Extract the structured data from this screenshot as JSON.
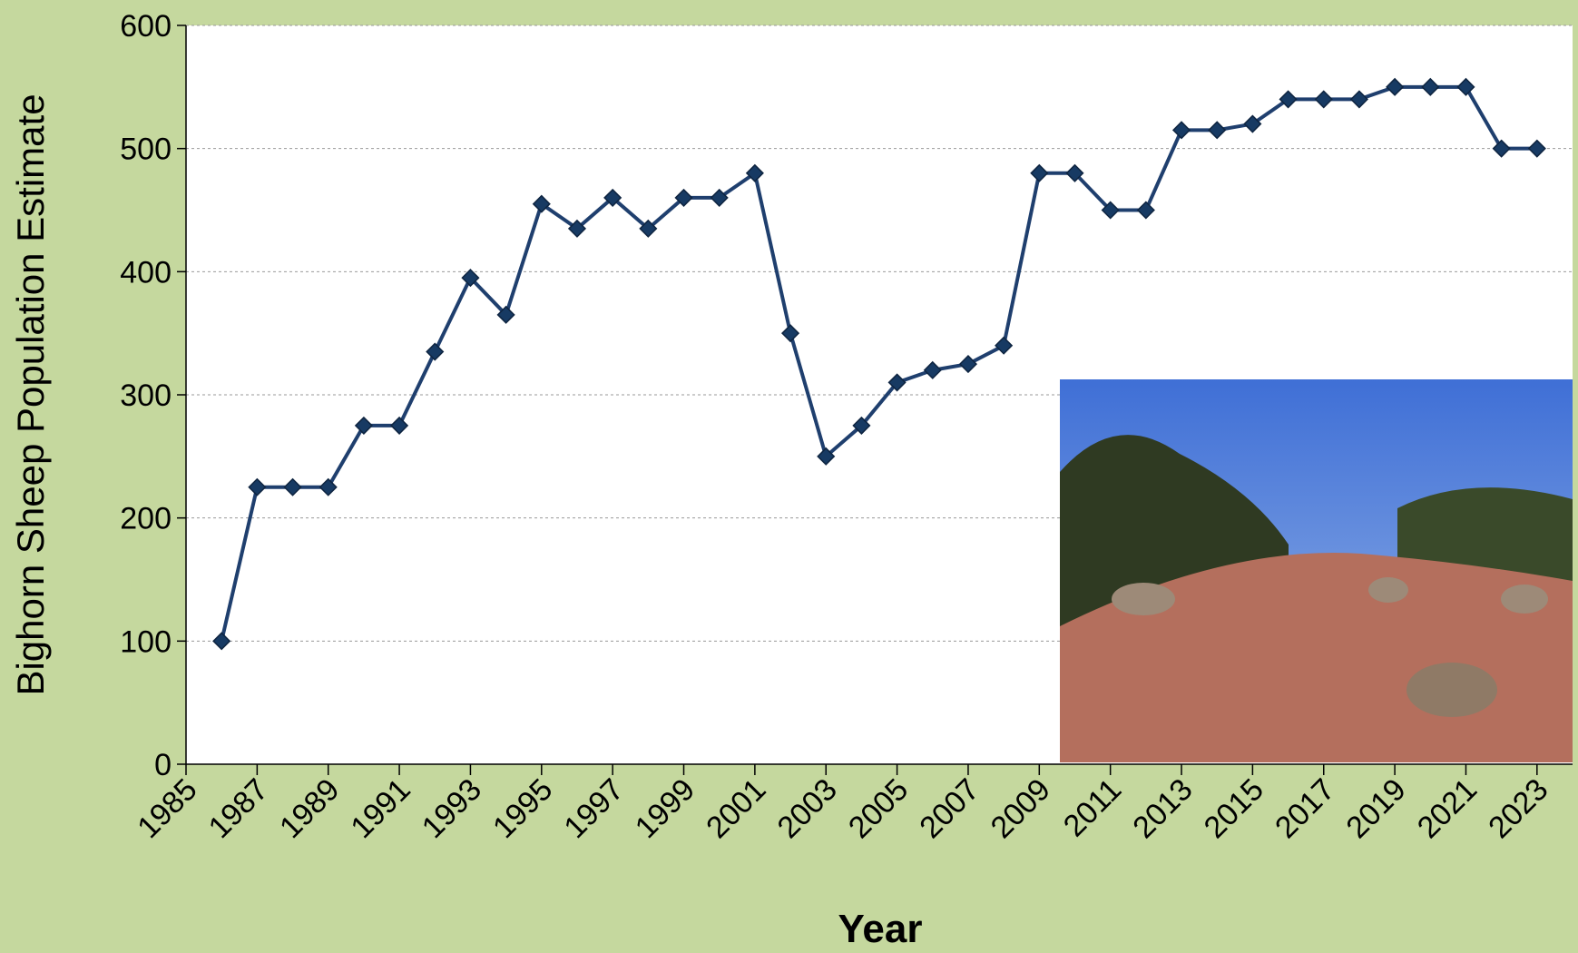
{
  "chart_data": {
    "type": "line",
    "x_label": "Year",
    "y_label": "Bighorn Sheep Population Estimate",
    "x": [
      1986,
      1987,
      1988,
      1989,
      1990,
      1991,
      1992,
      1993,
      1994,
      1995,
      1996,
      1997,
      1998,
      1999,
      2000,
      2001,
      2002,
      2003,
      2004,
      2005,
      2006,
      2007,
      2008,
      2009,
      2010,
      2011,
      2012,
      2013,
      2014,
      2015,
      2016,
      2017,
      2018,
      2019,
      2020,
      2021,
      2022,
      2023
    ],
    "series": [
      {
        "color": "#1f3f6e",
        "values": [
          100,
          225,
          225,
          225,
          275,
          275,
          335,
          395,
          365,
          455,
          435,
          460,
          435,
          460,
          460,
          480,
          350,
          250,
          275,
          310,
          320,
          325,
          340,
          480,
          480,
          450,
          450,
          515,
          515,
          520,
          540,
          540,
          540,
          550,
          550,
          550,
          500,
          500
        ]
      }
    ],
    "xlim": [
      1985,
      2024
    ],
    "xticks": [
      1985,
      1987,
      1989,
      1991,
      1993,
      1995,
      1997,
      1999,
      2001,
      2003,
      2005,
      2007,
      2009,
      2011,
      2013,
      2015,
      2017,
      2019,
      2021,
      2023
    ],
    "ylim": [
      0,
      600
    ],
    "yticks": [
      0,
      100,
      200,
      300,
      400,
      500,
      600
    ],
    "grid": true
  }
}
